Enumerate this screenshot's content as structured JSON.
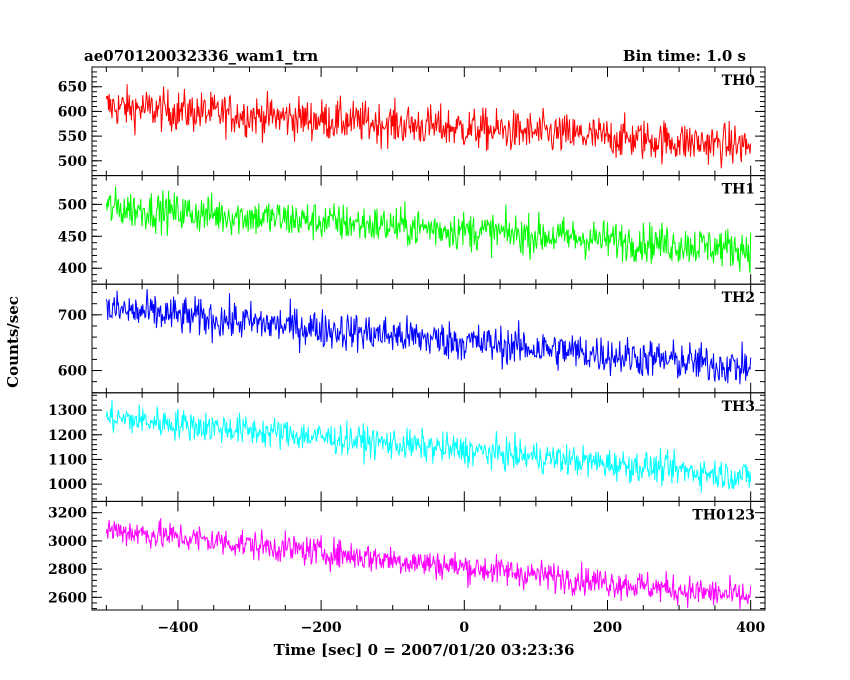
{
  "header": {
    "title": "ae070120032336_wam1_trn",
    "bin_time": "Bin time: 1.0 s"
  },
  "axes": {
    "xlabel": "Time [sec] 0 = 2007/01/20 03:23:36",
    "ylabel": "Counts/sec"
  },
  "chart_data": {
    "type": "line",
    "title": "ae070120032336_wam1_trn",
    "xlabel": "Time [sec] 0 = 2007/01/20 03:23:36",
    "ylabel": "Counts/sec",
    "xlim": [
      -520,
      420
    ],
    "x_range": [
      -500,
      400
    ],
    "bin_time": 1.0,
    "xticks": [
      -400,
      -200,
      0,
      200,
      400
    ],
    "stacked_panels": true,
    "grid": false,
    "series": [
      {
        "name": "TH0",
        "color": "#ff0000",
        "ylim": [
          470,
          690
        ],
        "yticks": [
          500,
          550,
          600,
          650
        ],
        "trend_start": 610,
        "trend_end": 530,
        "noise_amplitude": 30,
        "values_sample": [
          {
            "x": -500,
            "y": 610
          },
          {
            "x": -400,
            "y": 605
          },
          {
            "x": -300,
            "y": 595
          },
          {
            "x": -200,
            "y": 590
          },
          {
            "x": -100,
            "y": 582
          },
          {
            "x": 0,
            "y": 578
          },
          {
            "x": 100,
            "y": 572
          },
          {
            "x": 200,
            "y": 565
          },
          {
            "x": 300,
            "y": 555
          },
          {
            "x": 400,
            "y": 530
          }
        ]
      },
      {
        "name": "TH1",
        "color": "#00ff00",
        "ylim": [
          375,
          545
        ],
        "yticks": [
          400,
          450,
          500
        ],
        "trend_start": 495,
        "trend_end": 430,
        "noise_amplitude": 22,
        "values_sample": [
          {
            "x": -500,
            "y": 495
          },
          {
            "x": -400,
            "y": 490
          },
          {
            "x": -300,
            "y": 485
          },
          {
            "x": -200,
            "y": 475
          },
          {
            "x": -100,
            "y": 465
          },
          {
            "x": 0,
            "y": 462
          },
          {
            "x": 100,
            "y": 455
          },
          {
            "x": 200,
            "y": 448
          },
          {
            "x": 300,
            "y": 440
          },
          {
            "x": 400,
            "y": 430
          }
        ]
      },
      {
        "name": "TH2",
        "color": "#0000ff",
        "ylim": [
          560,
          755
        ],
        "yticks": [
          600,
          700
        ],
        "trend_start": 710,
        "trend_end": 605,
        "noise_amplitude": 25,
        "values_sample": [
          {
            "x": -500,
            "y": 710
          },
          {
            "x": -400,
            "y": 700
          },
          {
            "x": -300,
            "y": 690
          },
          {
            "x": -200,
            "y": 675
          },
          {
            "x": -100,
            "y": 660
          },
          {
            "x": 0,
            "y": 645
          },
          {
            "x": 100,
            "y": 630
          },
          {
            "x": 200,
            "y": 620
          },
          {
            "x": 300,
            "y": 610
          },
          {
            "x": 400,
            "y": 605
          }
        ]
      },
      {
        "name": "TH3",
        "color": "#00ffff",
        "ylim": [
          930,
          1370
        ],
        "yticks": [
          1000,
          1100,
          1200,
          1300
        ],
        "trend_start": 1270,
        "trend_end": 1030,
        "noise_amplitude": 45,
        "values_sample": [
          {
            "x": -500,
            "y": 1270
          },
          {
            "x": -400,
            "y": 1255
          },
          {
            "x": -300,
            "y": 1235
          },
          {
            "x": -200,
            "y": 1210
          },
          {
            "x": -100,
            "y": 1180
          },
          {
            "x": 0,
            "y": 1150
          },
          {
            "x": 100,
            "y": 1115
          },
          {
            "x": 200,
            "y": 1085
          },
          {
            "x": 300,
            "y": 1060
          },
          {
            "x": 400,
            "y": 1030
          }
        ]
      },
      {
        "name": "TH0123",
        "color": "#ff00ff",
        "ylim": [
          2510,
          3280
        ],
        "yticks": [
          2600,
          2800,
          3000,
          3200
        ],
        "trend_start": 3080,
        "trend_end": 2600,
        "noise_amplitude": 75,
        "values_sample": [
          {
            "x": -500,
            "y": 3080
          },
          {
            "x": -400,
            "y": 3050
          },
          {
            "x": -300,
            "y": 3000
          },
          {
            "x": -200,
            "y": 2950
          },
          {
            "x": -100,
            "y": 2900
          },
          {
            "x": 0,
            "y": 2840
          },
          {
            "x": 100,
            "y": 2790
          },
          {
            "x": 200,
            "y": 2730
          },
          {
            "x": 300,
            "y": 2670
          },
          {
            "x": 400,
            "y": 2600
          }
        ]
      }
    ]
  }
}
